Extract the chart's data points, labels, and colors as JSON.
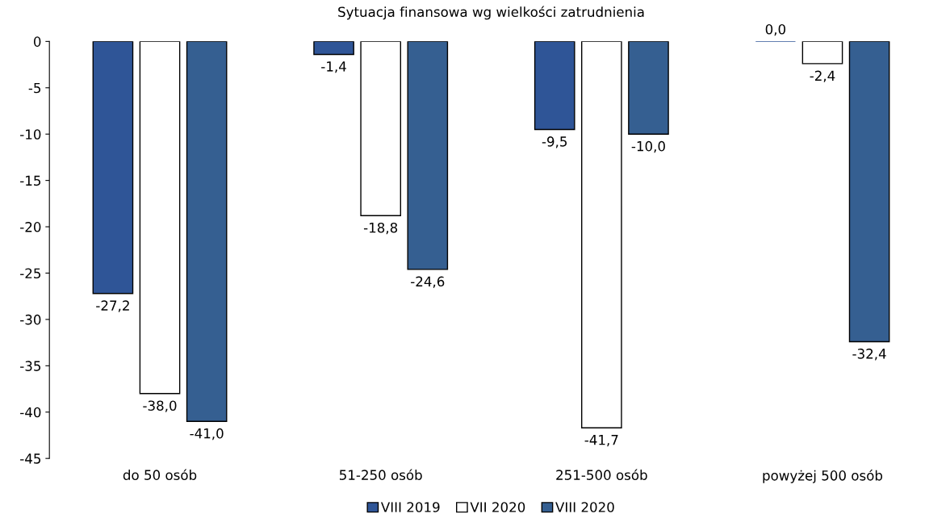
{
  "chart_data": {
    "type": "bar",
    "title": "Sytuacja finansowa wg wielkości zatrudnienia",
    "categories": [
      "do 50 osób",
      "51-250 osób",
      "251-500 osób",
      "powyżej 500 osób"
    ],
    "series": [
      {
        "name": "VIII 2019",
        "color": "#2f5597",
        "values": [
          -27.2,
          -1.4,
          -9.5,
          0.0
        ],
        "value_labels": [
          "-27,2",
          "-1,4",
          "-9,5",
          "0,0"
        ]
      },
      {
        "name": "VII 2020",
        "color": "#ffffff",
        "values": [
          -38.0,
          -18.8,
          -41.7,
          -2.4
        ],
        "value_labels": [
          "-38,0",
          "-18,8",
          "-41,7",
          "-2,4"
        ]
      },
      {
        "name": "VIII 2020",
        "color": "#355f91",
        "values": [
          -41.0,
          -24.6,
          -10.0,
          -32.4
        ],
        "value_labels": [
          "-41,0",
          "-24,6",
          "-10,0",
          "-32,4"
        ]
      }
    ],
    "ylim": [
      -45,
      0
    ],
    "yticks": [
      0,
      -5,
      -10,
      -15,
      -20,
      -25,
      -30,
      -35,
      -40,
      -45
    ],
    "grid": false,
    "legend": "bottom"
  }
}
